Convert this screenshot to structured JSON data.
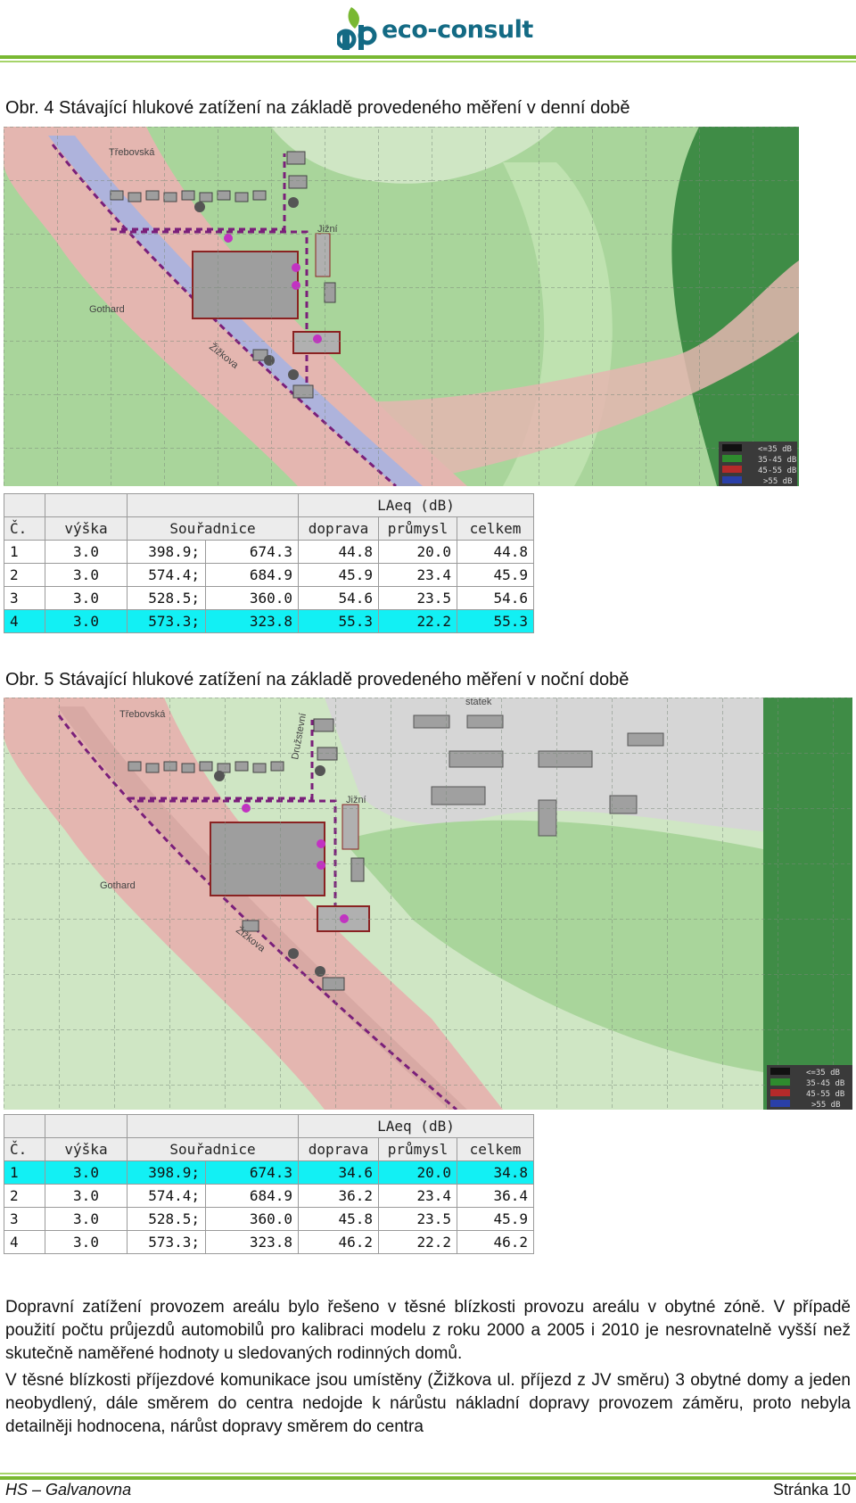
{
  "header": {
    "logo_text": "eco-consult",
    "logo_initials": "dP",
    "logo_icon": "leaf-icon"
  },
  "figure4": {
    "caption": "Obr. 4 Stávající hlukové zatížení na základě provedeného měření v denní době",
    "map_labels": [
      "Třebovská",
      "Jižní",
      "Gothard",
      "Žižkova"
    ],
    "legend": [
      "<=35 dB",
      "35-45 dB",
      "45-55 dB",
      ">55 dB"
    ],
    "legend_colors": [
      "#222222",
      "#2e8b2e",
      "#b52a2a",
      "#2a3fa8"
    ],
    "table": {
      "group_header": "LAeq (dB)",
      "columns": [
        "Č.",
        "výška",
        "Souřadnice",
        "doprava",
        "průmysl",
        "celkem"
      ],
      "rows": [
        [
          "1",
          "3.0",
          "398.9;",
          "674.3",
          "44.8",
          "20.0",
          "44.8"
        ],
        [
          "2",
          "3.0",
          "574.4;",
          "684.9",
          "45.9",
          "23.4",
          "45.9"
        ],
        [
          "3",
          "3.0",
          "528.5;",
          "360.0",
          "54.6",
          "23.5",
          "54.6"
        ],
        [
          "4",
          "3.0",
          "573.3;",
          "323.8",
          "55.3",
          "22.2",
          "55.3"
        ]
      ],
      "highlight_row": 4
    }
  },
  "figure5": {
    "caption": "Obr. 5 Stávající hlukové zatížení na základě provedeného měření v noční době",
    "map_labels": [
      "Třebovská",
      "Jižní",
      "Gothard",
      "Žižkova",
      "statek",
      "Družstevní"
    ],
    "legend": [
      "<=35 dB",
      "35-45 dB",
      "45-55 dB",
      ">55 dB"
    ],
    "table": {
      "group_header": "LAeq (dB)",
      "columns": [
        "Č.",
        "výška",
        "Souřadnice",
        "doprava",
        "průmysl",
        "celkem"
      ],
      "rows": [
        [
          "1",
          "3.0",
          "398.9;",
          "674.3",
          "34.6",
          "20.0",
          "34.8"
        ],
        [
          "2",
          "3.0",
          "574.4;",
          "684.9",
          "36.2",
          "23.4",
          "36.4"
        ],
        [
          "3",
          "3.0",
          "528.5;",
          "360.0",
          "45.8",
          "23.5",
          "45.9"
        ],
        [
          "4",
          "3.0",
          "573.3;",
          "323.8",
          "46.2",
          "22.2",
          "46.2"
        ]
      ],
      "highlight_row": 1
    }
  },
  "body": {
    "paragraph1": "Dopravní zatížení provozem areálu bylo řešeno v těsné blízkosti provozu areálu v obytné zóně. V případě použití počtu průjezdů automobilů pro kalibraci modelu z roku 2000 a 2005 i 2010 je nesrovnatelně vyšší než skutečně naměřené hodnoty u sledovaných rodinných domů.",
    "paragraph2": "V těsné blízkosti příjezdové komunikace jsou umístěny (Žižkova ul. příjezd z JV směru) 3 obytné domy a jeden neobydlený, dále směrem do centra nedojde k nárůstu nákladní dopravy provozem záměru, proto nebyla detailněji hodnocena, nárůst dopravy směrem do centra"
  },
  "footer": {
    "left": "HS – Galvanovna",
    "right": "Stránka 10"
  }
}
